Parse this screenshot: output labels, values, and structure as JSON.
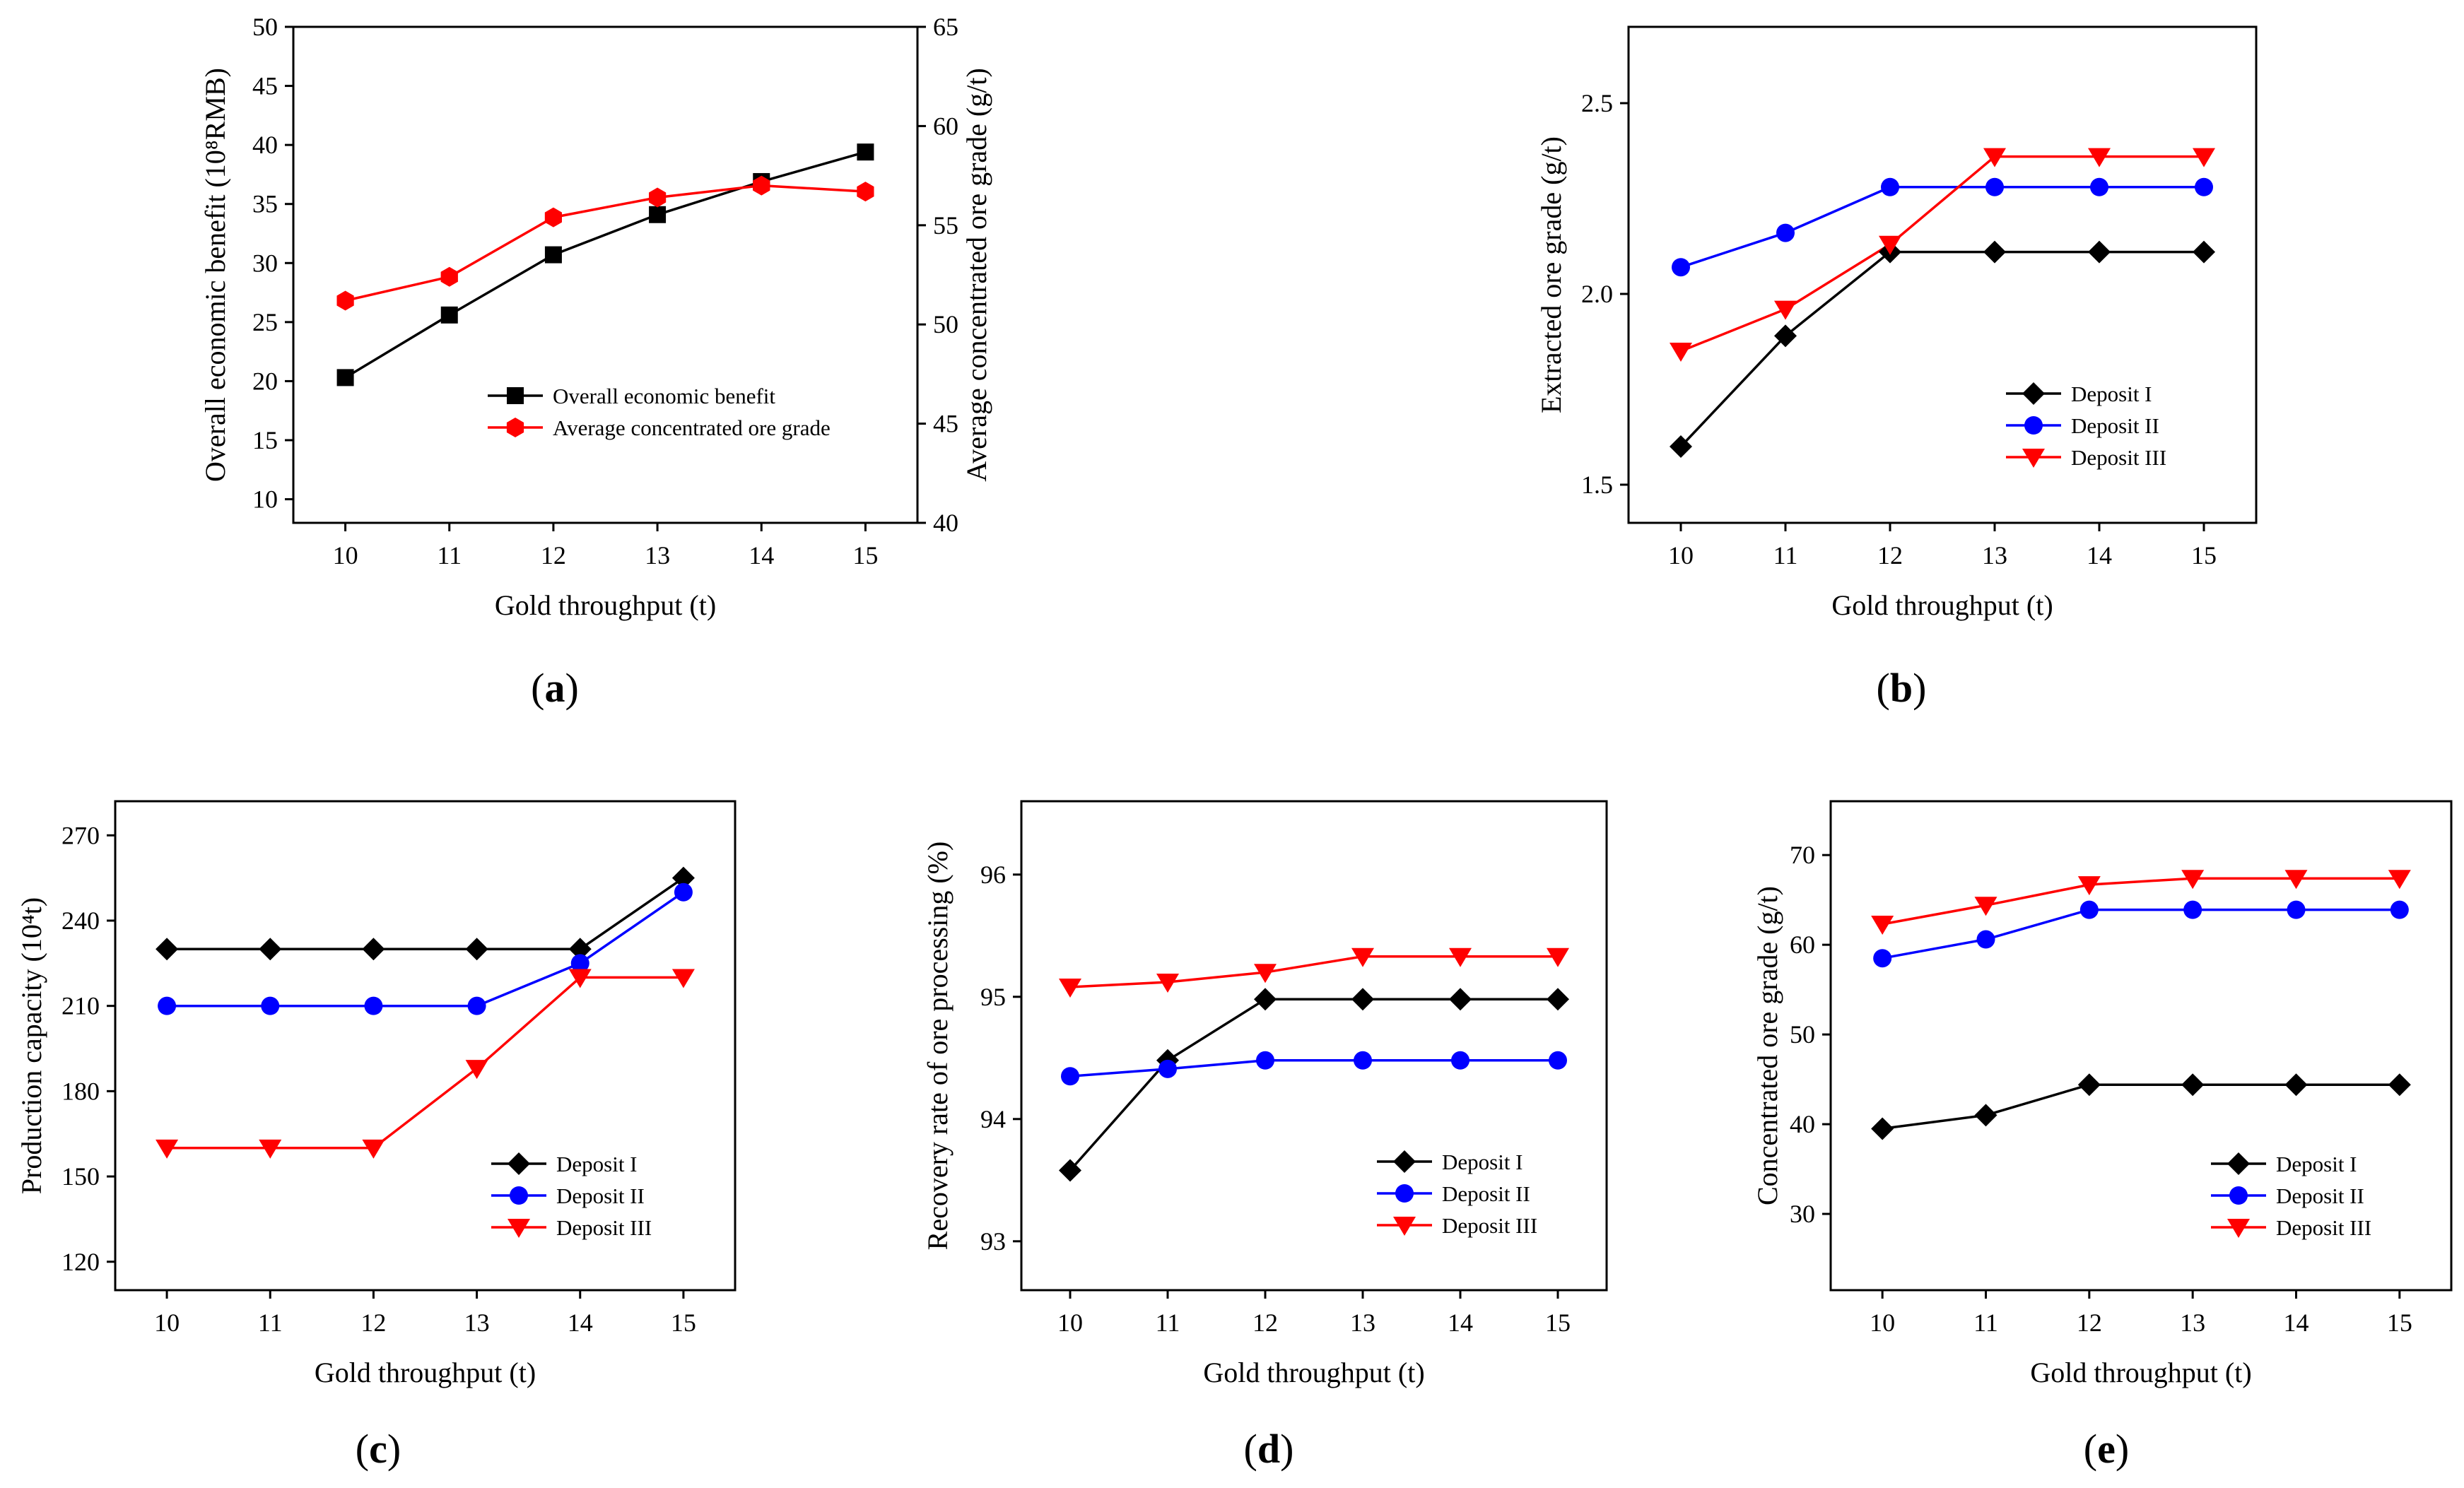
{
  "chart_data": [
    {
      "id": "a",
      "type": "line",
      "panel_label": {
        "open": "(",
        "letter": "a",
        "close": ")"
      },
      "xlabel": "Gold throughput (t)",
      "ylabel": "Overall economic benefit (10⁸RMB)",
      "ylabel_right": "Average concentrated ore grade (g/t)",
      "x": [
        10,
        11,
        12,
        13,
        14,
        15
      ],
      "xlim": [
        9.5,
        15.5
      ],
      "ylim": [
        8,
        50
      ],
      "ylim_right": [
        40,
        65
      ],
      "yticks": [
        10,
        15,
        20,
        25,
        30,
        35,
        40,
        45,
        50
      ],
      "yticks_right": [
        40,
        45,
        50,
        55,
        60,
        65
      ],
      "legend_position": "lower-right",
      "series": [
        {
          "name": "Overall economic benefit",
          "axis": "left",
          "color": "#000000",
          "marker": "square",
          "values": [
            20.3,
            25.6,
            30.7,
            34.1,
            36.9,
            39.4
          ]
        },
        {
          "name": "Average concentrated ore grade",
          "axis": "right",
          "color": "#ff0000",
          "marker": "hexagon",
          "values": [
            51.2,
            52.4,
            55.4,
            56.4,
            57.0,
            56.7
          ]
        }
      ]
    },
    {
      "id": "b",
      "type": "line",
      "panel_label": {
        "open": "(",
        "letter": "b",
        "close": ")"
      },
      "xlabel": "Gold throughput (t)",
      "ylabel": "Extracted ore grade (g/t)",
      "x": [
        10,
        11,
        12,
        13,
        14,
        15
      ],
      "xlim": [
        9.5,
        15.5
      ],
      "ylim": [
        1.4,
        2.7
      ],
      "yticks": [
        1.5,
        2.0,
        2.5
      ],
      "ytick_labels": [
        "1.5",
        "2.0",
        "2.5"
      ],
      "legend_position": "lower-right",
      "series": [
        {
          "name": "Deposit I",
          "color": "#000000",
          "marker": "diamond",
          "values": [
            1.6,
            1.89,
            2.11,
            2.11,
            2.11,
            2.11
          ]
        },
        {
          "name": "Deposit II",
          "color": "#0000ff",
          "marker": "circle",
          "values": [
            2.07,
            2.16,
            2.28,
            2.28,
            2.28,
            2.28
          ]
        },
        {
          "name": "Deposit III",
          "color": "#ff0000",
          "marker": "triangle-down",
          "values": [
            1.85,
            1.96,
            2.13,
            2.36,
            2.36,
            2.36
          ]
        }
      ]
    },
    {
      "id": "c",
      "type": "line",
      "panel_label": {
        "open": "(",
        "letter": "c",
        "close": ")"
      },
      "xlabel": "Gold throughput (t)",
      "ylabel": "Production capacity (10⁴t)",
      "x": [
        10,
        11,
        12,
        13,
        14,
        15
      ],
      "xlim": [
        9.5,
        15.5
      ],
      "ylim": [
        110,
        282
      ],
      "yticks": [
        120,
        150,
        180,
        210,
        240,
        270
      ],
      "legend_position": "lower-right",
      "series": [
        {
          "name": "Deposit I",
          "color": "#000000",
          "marker": "diamond",
          "values": [
            230,
            230,
            230,
            230,
            230,
            255
          ]
        },
        {
          "name": "Deposit II",
          "color": "#0000ff",
          "marker": "circle",
          "values": [
            210,
            210,
            210,
            210,
            225,
            250
          ]
        },
        {
          "name": "Deposit III",
          "color": "#ff0000",
          "marker": "triangle-down",
          "values": [
            160,
            160,
            160,
            188,
            220,
            220
          ]
        }
      ]
    },
    {
      "id": "d",
      "type": "line",
      "panel_label": {
        "open": "(",
        "letter": "d",
        "close": ")"
      },
      "xlabel": "Gold throughput (t)",
      "ylabel": "Recovery rate of ore processing (%)",
      "x": [
        10,
        11,
        12,
        13,
        14,
        15
      ],
      "xlim": [
        9.5,
        15.5
      ],
      "ylim": [
        92.6,
        96.6
      ],
      "yticks": [
        93,
        94,
        95,
        96
      ],
      "legend_position": "lower-right",
      "series": [
        {
          "name": "Deposit I",
          "color": "#000000",
          "marker": "diamond",
          "values": [
            93.58,
            94.48,
            94.98,
            94.98,
            94.98,
            94.98
          ]
        },
        {
          "name": "Deposit II",
          "color": "#0000ff",
          "marker": "circle",
          "values": [
            94.35,
            94.41,
            94.48,
            94.48,
            94.48,
            94.48
          ]
        },
        {
          "name": "Deposit III",
          "color": "#ff0000",
          "marker": "triangle-down",
          "values": [
            95.08,
            95.12,
            95.2,
            95.33,
            95.33,
            95.33
          ]
        }
      ]
    },
    {
      "id": "e",
      "type": "line",
      "panel_label": {
        "open": "(",
        "letter": "e",
        "close": ")"
      },
      "xlabel": "Gold throughput (t)",
      "ylabel": "Concentrated ore grade (g/t)",
      "x": [
        10,
        11,
        12,
        13,
        14,
        15
      ],
      "xlim": [
        9.5,
        15.5
      ],
      "ylim": [
        21.5,
        76
      ],
      "yticks": [
        30,
        40,
        50,
        60,
        70
      ],
      "legend_position": "lower-right",
      "series": [
        {
          "name": "Deposit I",
          "color": "#000000",
          "marker": "diamond",
          "values": [
            39.5,
            41.0,
            44.4,
            44.4,
            44.4,
            44.4
          ]
        },
        {
          "name": "Deposit II",
          "color": "#0000ff",
          "marker": "circle",
          "values": [
            58.5,
            60.6,
            63.9,
            63.9,
            63.9,
            63.9
          ]
        },
        {
          "name": "Deposit III",
          "color": "#ff0000",
          "marker": "triangle-down",
          "values": [
            62.3,
            64.4,
            66.7,
            67.4,
            67.4,
            67.4
          ]
        }
      ]
    }
  ]
}
